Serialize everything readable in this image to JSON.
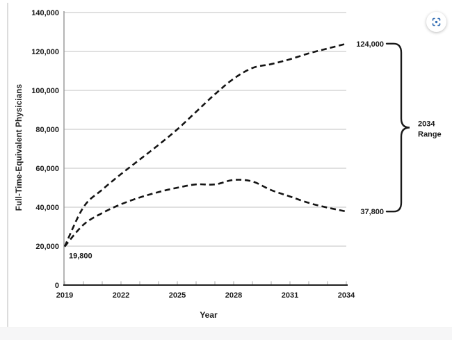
{
  "page": {
    "background": "#ffffff",
    "divider_color": "#dcdcdc",
    "footer_color": "#f6f6f7"
  },
  "lens_button": {
    "icon": "lens-viewfinder-icon",
    "icon_color": "#2f6bb3"
  },
  "chart_data": {
    "type": "line",
    "title": "",
    "xlabel": "Year",
    "ylabel": "Full-Time-Equivalent Physicians",
    "x": [
      2019,
      2020,
      2021,
      2022,
      2023,
      2024,
      2025,
      2026,
      2027,
      2028,
      2029,
      2030,
      2031,
      2032,
      2033,
      2034
    ],
    "x_tick_labeled": [
      2019,
      2022,
      2025,
      2028,
      2031,
      2034
    ],
    "ylim": [
      0,
      140000
    ],
    "y_ticks": [
      0,
      20000,
      40000,
      60000,
      80000,
      100000,
      120000,
      140000
    ],
    "y_tick_labels": [
      "0",
      "20,000",
      "40,000",
      "60,000",
      "80,000",
      "100,000",
      "120,000",
      "140,000"
    ],
    "grid": true,
    "legend": "none",
    "line_color": "#141414",
    "line_style": "dashed",
    "series": [
      {
        "name": "upper-projection",
        "values": [
          19800,
          40000,
          49000,
          57000,
          64500,
          72000,
          80000,
          89000,
          98000,
          106000,
          111500,
          113500,
          116000,
          119000,
          121500,
          124000
        ]
      },
      {
        "name": "lower-projection",
        "values": [
          19800,
          31000,
          37000,
          41500,
          45000,
          47800,
          50000,
          51700,
          51700,
          54000,
          53200,
          48800,
          45500,
          42200,
          39800,
          37800
        ]
      }
    ],
    "annotations": {
      "start_value": "19,800",
      "upper_end_value": "124,000",
      "lower_end_value": "37,800",
      "range_line1": "2034",
      "range_line2": "Range"
    }
  }
}
